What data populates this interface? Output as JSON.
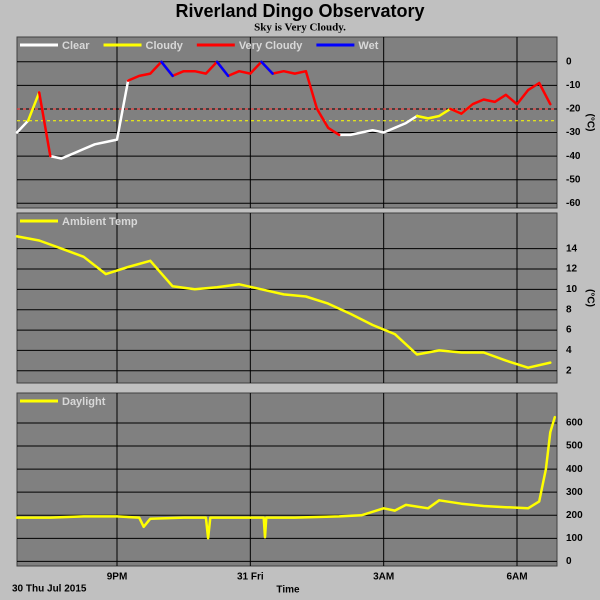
{
  "chart_data": [
    {
      "type": "line",
      "title": "Riverland Dingo Observatory",
      "subtitle": "Sky is Very Cloudy.",
      "ylabel": "(°C)",
      "xlim": [
        18.75,
        30.9
      ],
      "ylim": [
        -62,
        10.5
      ],
      "yticks": [
        0,
        -10,
        -20,
        -30,
        -40,
        -50,
        -60
      ],
      "grid": true,
      "reference_lines": [
        {
          "value": -20,
          "color": "#ff3030"
        },
        {
          "value": -25,
          "color": "#ffff00"
        }
      ],
      "x": [
        18.75,
        19,
        19.25,
        19.5,
        19.75,
        20,
        20.25,
        20.5,
        20.75,
        21,
        21.25,
        21.5,
        21.75,
        22,
        22.25,
        22.5,
        22.75,
        23,
        23.25,
        23.5,
        23.75,
        24,
        24.25,
        24.5,
        24.75,
        25,
        25.25,
        25.5,
        25.75,
        26,
        26.25,
        26.5,
        26.75,
        27,
        27.25,
        27.5,
        27.75,
        28,
        28.25,
        28.5,
        28.75,
        29,
        29.25,
        29.5,
        29.75,
        30,
        30.25,
        30.5,
        30.75
      ],
      "series": [
        {
          "name": "Clear",
          "color": "#ffffff",
          "values": [
            -30,
            -25,
            null,
            -40,
            -41,
            -39,
            -37,
            -35,
            -34,
            -33,
            -8,
            null,
            null,
            null,
            null,
            null,
            null,
            null,
            null,
            null,
            null,
            null,
            null,
            null,
            null,
            null,
            null,
            null,
            null,
            -31,
            -31,
            -30,
            -29,
            -30,
            -28,
            -26,
            -23,
            null,
            null,
            null,
            null,
            null,
            null,
            null,
            null,
            null,
            null,
            null,
            null
          ]
        },
        {
          "name": "Cloudy",
          "color": "#ffff00",
          "values": [
            null,
            -25,
            -13,
            null,
            null,
            null,
            null,
            null,
            null,
            null,
            null,
            null,
            null,
            null,
            null,
            null,
            null,
            null,
            null,
            null,
            null,
            null,
            null,
            null,
            null,
            null,
            null,
            null,
            null,
            null,
            null,
            null,
            null,
            null,
            null,
            null,
            -23,
            -24,
            -23,
            -20,
            -22,
            -18,
            null,
            null,
            null,
            null,
            null,
            null,
            null
          ]
        },
        {
          "name": "Very Cloudy",
          "color": "#ff0000",
          "values": [
            null,
            null,
            -13,
            -40,
            null,
            null,
            null,
            null,
            null,
            null,
            -8,
            -6,
            -5,
            0,
            -6,
            -4,
            -4,
            -5,
            0,
            -6,
            -4,
            -5,
            0,
            -5,
            -4,
            -5,
            -4,
            -20,
            -28,
            -31,
            null,
            null,
            null,
            null,
            null,
            null,
            null,
            null,
            null,
            -20,
            -22,
            -18,
            -16,
            -17,
            -14,
            -18,
            -12,
            -9,
            -18
          ]
        },
        {
          "name": "Wet",
          "color": "#0000ff",
          "values": [
            null,
            null,
            null,
            null,
            null,
            null,
            null,
            null,
            null,
            null,
            null,
            null,
            null,
            0,
            -6,
            null,
            null,
            null,
            0,
            -6,
            null,
            null,
            0,
            -5,
            null,
            null,
            null,
            null,
            null,
            null,
            null,
            null,
            null,
            null,
            null,
            null,
            null,
            null,
            null,
            null,
            null,
            null,
            null,
            null,
            null,
            null,
            null,
            null,
            null
          ]
        }
      ]
    },
    {
      "type": "line",
      "ylabel": "(°C)",
      "xlim": [
        18.75,
        30.9
      ],
      "ylim": [
        0.8,
        17.5
      ],
      "yticks": [
        2,
        4,
        6,
        8,
        10,
        12,
        14
      ],
      "grid": true,
      "x": [
        18.75,
        19.25,
        19.75,
        20.25,
        20.75,
        21.25,
        21.75,
        22.25,
        22.75,
        23.25,
        23.75,
        24.25,
        24.75,
        25.25,
        25.75,
        26.25,
        26.75,
        27.25,
        27.75,
        28.25,
        28.75,
        29.25,
        29.75,
        30.25,
        30.75
      ],
      "series": [
        {
          "name": "Ambient Temp",
          "color": "#ffff00",
          "values": [
            15.2,
            14.8,
            14.0,
            13.2,
            11.5,
            12.2,
            12.8,
            10.3,
            10.0,
            10.2,
            10.5,
            10.0,
            9.5,
            9.3,
            8.6,
            7.6,
            6.5,
            5.6,
            3.6,
            4.0,
            3.8,
            3.8,
            3.0,
            2.3,
            2.8
          ]
        }
      ]
    },
    {
      "type": "line",
      "xlabel": "Time",
      "annotation": "30 Thu Jul 2015",
      "xlim": [
        18.75,
        30.9
      ],
      "ylim": [
        -20,
        730
      ],
      "yticks": [
        0,
        100,
        200,
        300,
        400,
        500,
        600
      ],
      "grid": true,
      "xticks": [
        {
          "value": 21,
          "label": "9PM"
        },
        {
          "value": 24,
          "label": "31 Fri"
        },
        {
          "value": 27,
          "label": "3AM"
        },
        {
          "value": 30,
          "label": "6AM"
        }
      ],
      "x": [
        18.75,
        19.5,
        20.25,
        21,
        21.5,
        21.6,
        21.75,
        22.5,
        23,
        23.05,
        23.1,
        24,
        24.3,
        24.33,
        24.36,
        25,
        26,
        26.5,
        27,
        27.25,
        27.5,
        28,
        28.25,
        28.75,
        29.25,
        29.75,
        30.25,
        30.5,
        30.65,
        30.75,
        30.85
      ],
      "series": [
        {
          "name": "Daylight",
          "color": "#ffff00",
          "values": [
            190,
            190,
            195,
            195,
            190,
            150,
            185,
            190,
            190,
            100,
            190,
            190,
            190,
            105,
            190,
            190,
            195,
            200,
            230,
            220,
            245,
            230,
            265,
            250,
            240,
            235,
            230,
            260,
            400,
            560,
            625
          ]
        }
      ]
    }
  ]
}
